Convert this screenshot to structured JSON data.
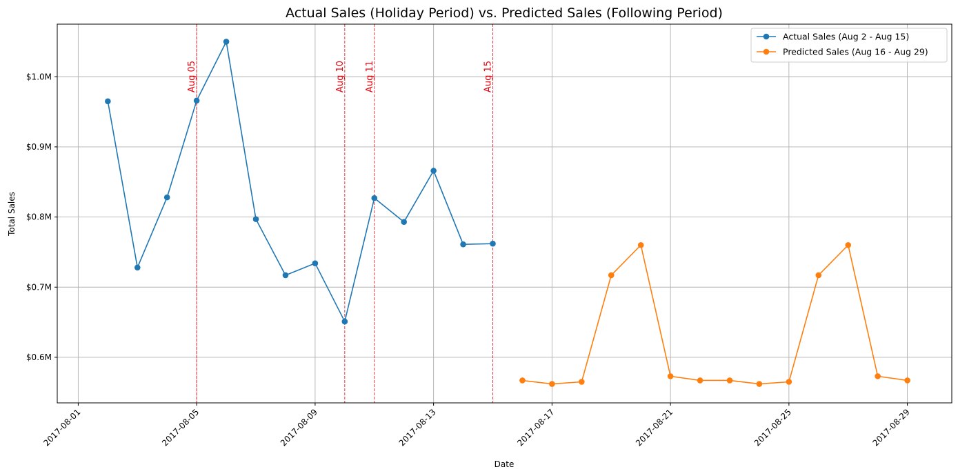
{
  "chart_data": {
    "type": "line",
    "title": "Actual Sales (Holiday Period) vs. Predicted Sales (Following Period)",
    "xlabel": "Date",
    "ylabel": "Total Sales",
    "xlim": [
      "2017-07-31T07:00",
      "2017-08-30T12:00"
    ],
    "ylim": [
      535000,
      1075000
    ],
    "grid": true,
    "legend_position": "upper right",
    "x_ticks": [
      "2017-08-01",
      "2017-08-05",
      "2017-08-09",
      "2017-08-13",
      "2017-08-17",
      "2017-08-21",
      "2017-08-25",
      "2017-08-29"
    ],
    "y_ticks": [
      {
        "value": 600000,
        "label": "$0.6M"
      },
      {
        "value": 700000,
        "label": "$0.7M"
      },
      {
        "value": 800000,
        "label": "$0.8M"
      },
      {
        "value": 900000,
        "label": "$0.9M"
      },
      {
        "value": 1000000,
        "label": "$1.0M"
      }
    ],
    "series": [
      {
        "name": "Actual Sales (Aug 2 - Aug 15)",
        "color": "#1f77b4",
        "x": [
          "2017-08-02",
          "2017-08-03",
          "2017-08-04",
          "2017-08-05",
          "2017-08-06",
          "2017-08-07",
          "2017-08-08",
          "2017-08-09",
          "2017-08-10",
          "2017-08-11",
          "2017-08-12",
          "2017-08-13",
          "2017-08-14",
          "2017-08-15"
        ],
        "values": [
          965000,
          728000,
          828000,
          966000,
          1050000,
          797000,
          717000,
          734000,
          651000,
          827000,
          793000,
          866000,
          761000,
          762000
        ]
      },
      {
        "name": "Predicted Sales (Aug 16 - Aug 29)",
        "color": "#ff7f0e",
        "x": [
          "2017-08-16",
          "2017-08-17",
          "2017-08-18",
          "2017-08-19",
          "2017-08-20",
          "2017-08-21",
          "2017-08-22",
          "2017-08-23",
          "2017-08-24",
          "2017-08-25",
          "2017-08-26",
          "2017-08-27",
          "2017-08-28",
          "2017-08-29"
        ],
        "values": [
          567000,
          562000,
          565000,
          717000,
          760000,
          573000,
          567000,
          567000,
          562000,
          565000,
          717000,
          760000,
          573000,
          567000
        ]
      }
    ],
    "annotations": [
      {
        "x": "2017-08-05",
        "label": "Aug 05",
        "color": "#e8000b"
      },
      {
        "x": "2017-08-10",
        "label": "Aug 10",
        "color": "#e8000b"
      },
      {
        "x": "2017-08-11",
        "label": "Aug 11",
        "color": "#e8000b"
      },
      {
        "x": "2017-08-15",
        "label": "Aug 15",
        "color": "#e8000b"
      }
    ]
  }
}
